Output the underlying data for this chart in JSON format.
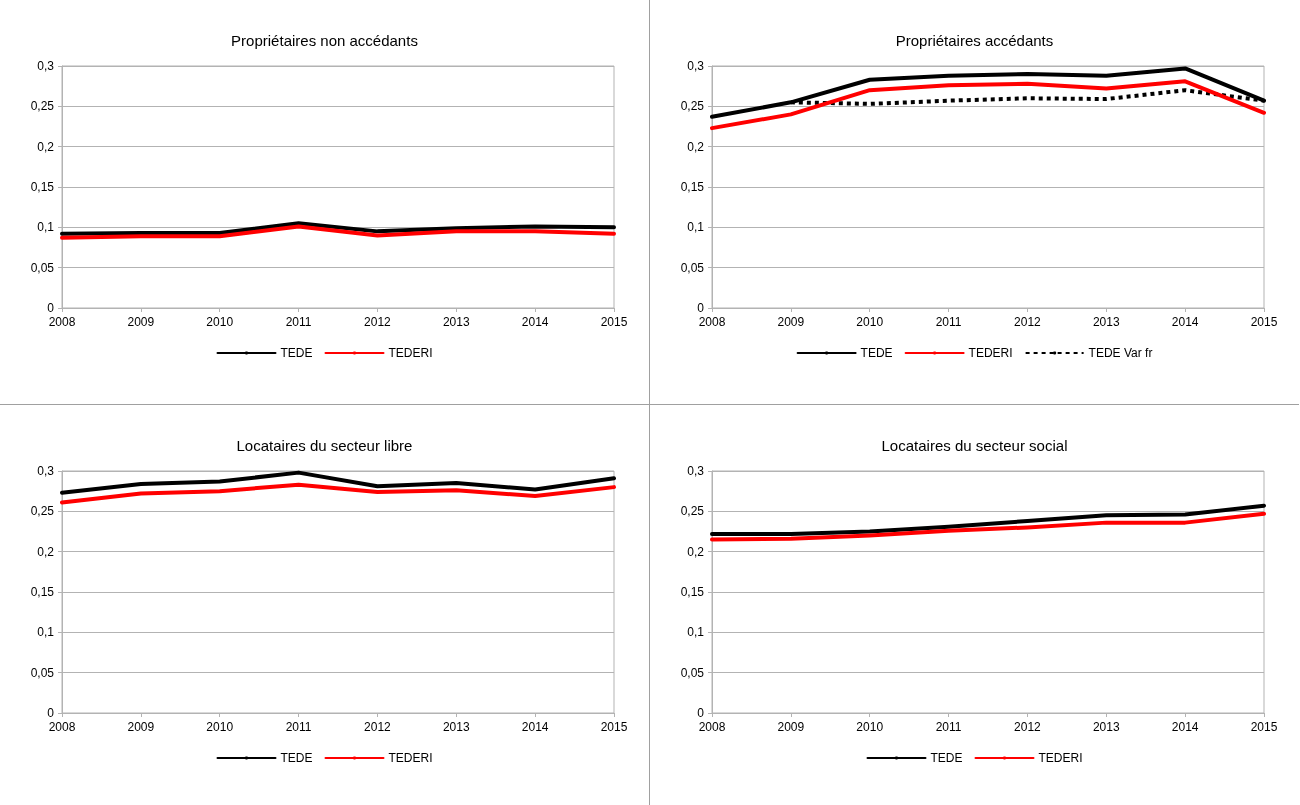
{
  "chart_data": [
    {
      "type": "line",
      "title": "Propriétaires non accédants",
      "x": [
        2008,
        2009,
        2010,
        2011,
        2012,
        2013,
        2014,
        2015
      ],
      "xlim": [
        2008,
        2015
      ],
      "xticks": [
        2008,
        2009,
        2010,
        2011,
        2012,
        2013,
        2014,
        2015
      ],
      "ylim": [
        0,
        0.3
      ],
      "yticks": [
        {
          "value": 0,
          "label": "0"
        },
        {
          "value": 0.05,
          "label": "0,05"
        },
        {
          "value": 0.1,
          "label": "0,1"
        },
        {
          "value": 0.15,
          "label": "0,15"
        },
        {
          "value": 0.2,
          "label": "0,2"
        },
        {
          "value": 0.25,
          "label": "0,25"
        },
        {
          "value": 0.3,
          "label": "0,3"
        }
      ],
      "grid": "y",
      "legend": "bottom",
      "marker": "none",
      "line_style": "solid",
      "series": [
        {
          "name": "TEDE",
          "color": "#000000",
          "values": [
            0.092,
            0.093,
            0.093,
            0.105,
            0.095,
            0.099,
            0.101,
            0.1
          ]
        },
        {
          "name": "TEDERI",
          "color": "#ff0000",
          "values": [
            0.087,
            0.089,
            0.089,
            0.101,
            0.09,
            0.095,
            0.095,
            0.092
          ]
        }
      ]
    },
    {
      "type": "line",
      "title": "Propriétaires accédants",
      "x": [
        2008,
        2009,
        2010,
        2011,
        2012,
        2013,
        2014,
        2015
      ],
      "xlim": [
        2008,
        2015
      ],
      "xticks": [
        2008,
        2009,
        2010,
        2011,
        2012,
        2013,
        2014,
        2015
      ],
      "ylim": [
        0,
        0.3
      ],
      "yticks": [
        {
          "value": 0,
          "label": "0"
        },
        {
          "value": 0.05,
          "label": "0,05"
        },
        {
          "value": 0.1,
          "label": "0,1"
        },
        {
          "value": 0.15,
          "label": "0,15"
        },
        {
          "value": 0.2,
          "label": "0,2"
        },
        {
          "value": 0.25,
          "label": "0,25"
        },
        {
          "value": 0.3,
          "label": "0,3"
        }
      ],
      "grid": "y",
      "legend": "bottom",
      "marker": "none",
      "line_style": "solid",
      "series": [
        {
          "name": "TEDE",
          "color": "#000000",
          "values": [
            0.237,
            0.255,
            0.283,
            0.288,
            0.29,
            0.288,
            0.297,
            0.257
          ]
        },
        {
          "name": "TEDERI",
          "color": "#ff0000",
          "values": [
            0.223,
            0.24,
            0.27,
            0.276,
            0.278,
            0.272,
            0.281,
            0.242
          ]
        },
        {
          "name": "TEDE Var fr",
          "color": "#000000",
          "line_style": "dotted",
          "values": [
            null,
            0.255,
            0.253,
            0.257,
            0.26,
            0.259,
            0.27,
            0.257
          ]
        }
      ]
    },
    {
      "type": "line",
      "title": "Locataires du secteur libre",
      "x": [
        2008,
        2009,
        2010,
        2011,
        2012,
        2013,
        2014,
        2015
      ],
      "xlim": [
        2008,
        2015
      ],
      "xticks": [
        2008,
        2009,
        2010,
        2011,
        2012,
        2013,
        2014,
        2015
      ],
      "ylim": [
        0,
        0.3
      ],
      "yticks": [
        {
          "value": 0,
          "label": "0"
        },
        {
          "value": 0.05,
          "label": "0,05"
        },
        {
          "value": 0.1,
          "label": "0,1"
        },
        {
          "value": 0.15,
          "label": "0,15"
        },
        {
          "value": 0.2,
          "label": "0,2"
        },
        {
          "value": 0.25,
          "label": "0,25"
        },
        {
          "value": 0.3,
          "label": "0,3"
        }
      ],
      "grid": "y",
      "legend": "bottom",
      "marker": "none",
      "line_style": "solid",
      "series": [
        {
          "name": "TEDE",
          "color": "#000000",
          "values": [
            0.273,
            0.284,
            0.287,
            0.298,
            0.281,
            0.285,
            0.277,
            0.291
          ]
        },
        {
          "name": "TEDERI",
          "color": "#ff0000",
          "values": [
            0.261,
            0.272,
            0.275,
            0.283,
            0.274,
            0.276,
            0.269,
            0.28
          ]
        }
      ]
    },
    {
      "type": "line",
      "title": "Locataires du secteur social",
      "x": [
        2008,
        2009,
        2010,
        2011,
        2012,
        2013,
        2014,
        2015
      ],
      "xlim": [
        2008,
        2015
      ],
      "xticks": [
        2008,
        2009,
        2010,
        2011,
        2012,
        2013,
        2014,
        2015
      ],
      "ylim": [
        0,
        0.3
      ],
      "yticks": [
        {
          "value": 0,
          "label": "0"
        },
        {
          "value": 0.05,
          "label": "0,05"
        },
        {
          "value": 0.1,
          "label": "0,1"
        },
        {
          "value": 0.15,
          "label": "0,15"
        },
        {
          "value": 0.2,
          "label": "0,2"
        },
        {
          "value": 0.25,
          "label": "0,25"
        },
        {
          "value": 0.3,
          "label": "0,3"
        }
      ],
      "grid": "y",
      "legend": "bottom",
      "marker": "none",
      "line_style": "solid",
      "series": [
        {
          "name": "TEDE",
          "color": "#000000",
          "values": [
            0.222,
            0.222,
            0.225,
            0.231,
            0.238,
            0.245,
            0.246,
            0.257
          ]
        },
        {
          "name": "TEDERI",
          "color": "#ff0000",
          "values": [
            0.215,
            0.216,
            0.22,
            0.226,
            0.23,
            0.236,
            0.236,
            0.247
          ]
        }
      ]
    }
  ]
}
